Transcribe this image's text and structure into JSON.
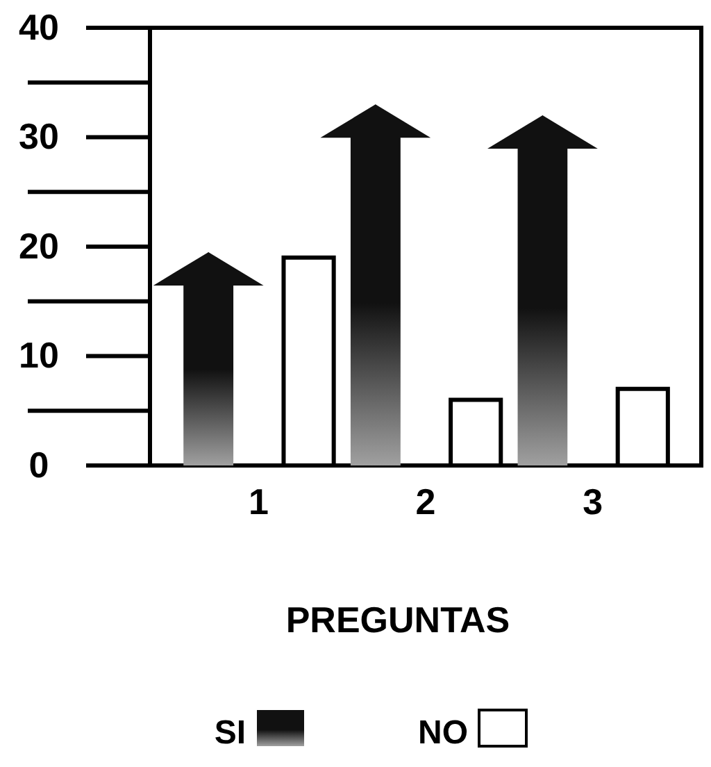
{
  "chart_data": {
    "type": "bar",
    "xlabel": "PREGUNTAS",
    "categories": [
      "1",
      "2",
      "3"
    ],
    "series": [
      {
        "name": "SI",
        "color": "#111111",
        "values": [
          19.5,
          33,
          32
        ]
      },
      {
        "name": "NO",
        "color": "#ffffff",
        "values": [
          19,
          6,
          7
        ]
      }
    ],
    "ylim": [
      0,
      40
    ],
    "yticks": [
      0,
      {
        "value": 5,
        "label": null
      },
      10,
      {
        "value": 15,
        "label": null
      },
      20,
      {
        "value": 25,
        "label": null
      },
      30,
      {
        "value": 35,
        "label": null
      },
      40
    ],
    "legend": "bottom",
    "grid": false
  }
}
